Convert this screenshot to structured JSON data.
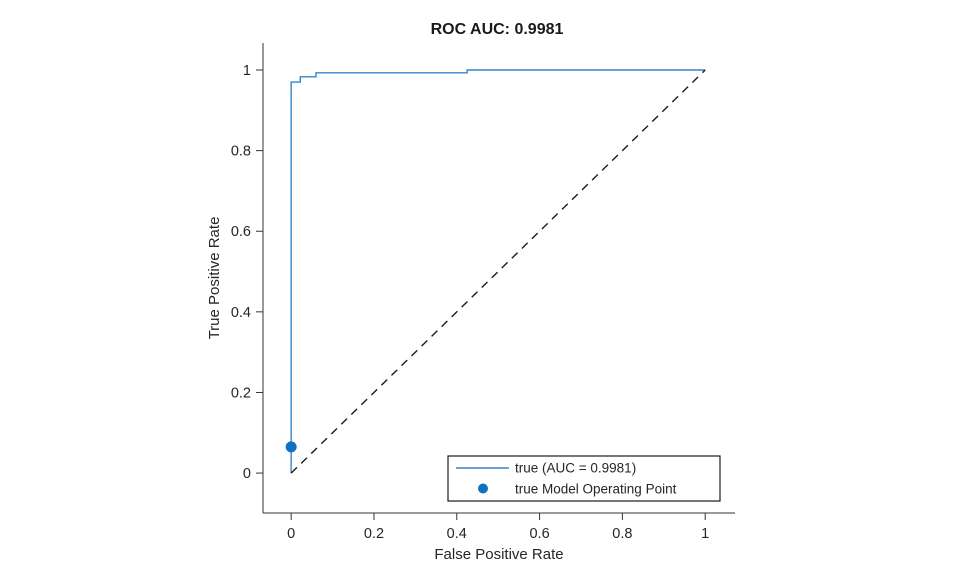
{
  "title": "ROC AUC: 0.9981",
  "chart_data": {
    "type": "line",
    "title": "ROC AUC: 0.9981",
    "xlabel": "False Positive Rate",
    "ylabel": "True Positive Rate",
    "xlim": [
      -0.068,
      1.072
    ],
    "ylim": [
      -0.099,
      1.067
    ],
    "x_ticks": [
      0,
      0.2,
      0.4,
      0.6,
      0.8,
      1
    ],
    "x_tick_labels": [
      "0",
      "0.2",
      "0.4",
      "0.6",
      "0.8",
      "1"
    ],
    "y_ticks": [
      0,
      0.2,
      0.4,
      0.6,
      0.8,
      1
    ],
    "y_tick_labels": [
      "0",
      "0.2",
      "0.4",
      "0.6",
      "0.8",
      "1"
    ],
    "grid": false,
    "legend_position": "inside-lower-right",
    "axis_color": "#333333",
    "series": [
      {
        "name": "true (AUC = 0.9981)",
        "type": "line",
        "color": "#3584cb",
        "line_width": 1.4,
        "x": [
          0,
          0,
          0.022,
          0.022,
          0.06,
          0.06,
          0.425,
          0.425,
          1
        ],
        "y": [
          0,
          0.97,
          0.97,
          0.983,
          0.983,
          0.993,
          0.993,
          1.0,
          1.0
        ]
      },
      {
        "name": "random-classifier-reference",
        "type": "dashed-line",
        "color": "#1b1b1b",
        "line_width": 1.4,
        "dash": "8 6",
        "x": [
          0,
          1
        ],
        "y": [
          0,
          1
        ]
      },
      {
        "name": "true Model Operating Point",
        "type": "scatter",
        "color": "#1272c1",
        "marker_radius": 5.5,
        "x": [
          0
        ],
        "y": [
          0.065
        ]
      }
    ],
    "legend": {
      "entries": [
        {
          "label": "true (AUC = 0.9981)",
          "marker": "line"
        },
        {
          "label": "true Model Operating Point",
          "marker": "dot"
        }
      ]
    },
    "auc": 0.9981
  }
}
